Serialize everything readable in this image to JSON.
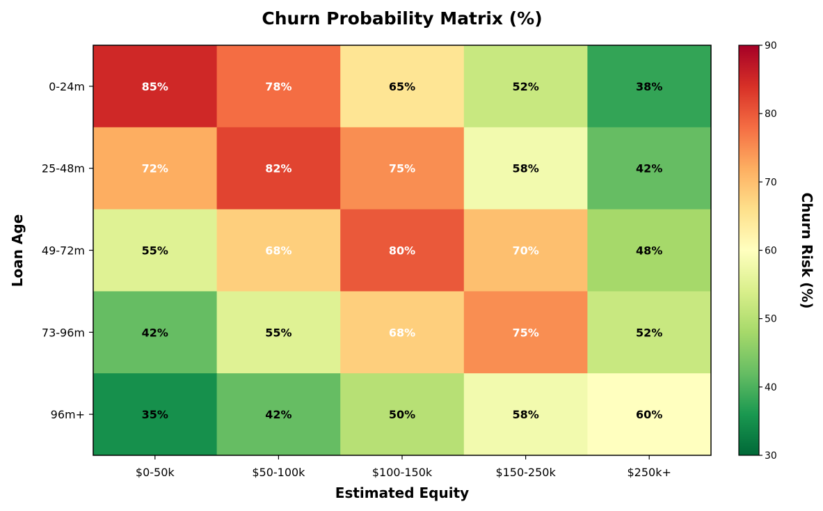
{
  "chart_data": {
    "type": "heatmap",
    "title": "Churn Probability Matrix (%)",
    "xlabel": "Estimated Equity",
    "ylabel": "Loan Age",
    "x_categories": [
      "$0-50k",
      "$50-100k",
      "$100-150k",
      "$150-250k",
      "$250k+"
    ],
    "y_categories": [
      "0-24m",
      "25-48m",
      "49-72m",
      "73-96m",
      "96m+"
    ],
    "values": [
      [
        85,
        78,
        65,
        52,
        38
      ],
      [
        72,
        82,
        75,
        58,
        42
      ],
      [
        55,
        68,
        80,
        70,
        48
      ],
      [
        42,
        55,
        68,
        75,
        52
      ],
      [
        35,
        42,
        50,
        58,
        60
      ]
    ],
    "value_suffix": "%",
    "colormap": "RdYlGn_r",
    "colorbar": {
      "label": "Churn Risk (%)",
      "range": [
        30,
        90
      ],
      "ticks": [
        30,
        40,
        50,
        60,
        70,
        80,
        90
      ]
    }
  }
}
